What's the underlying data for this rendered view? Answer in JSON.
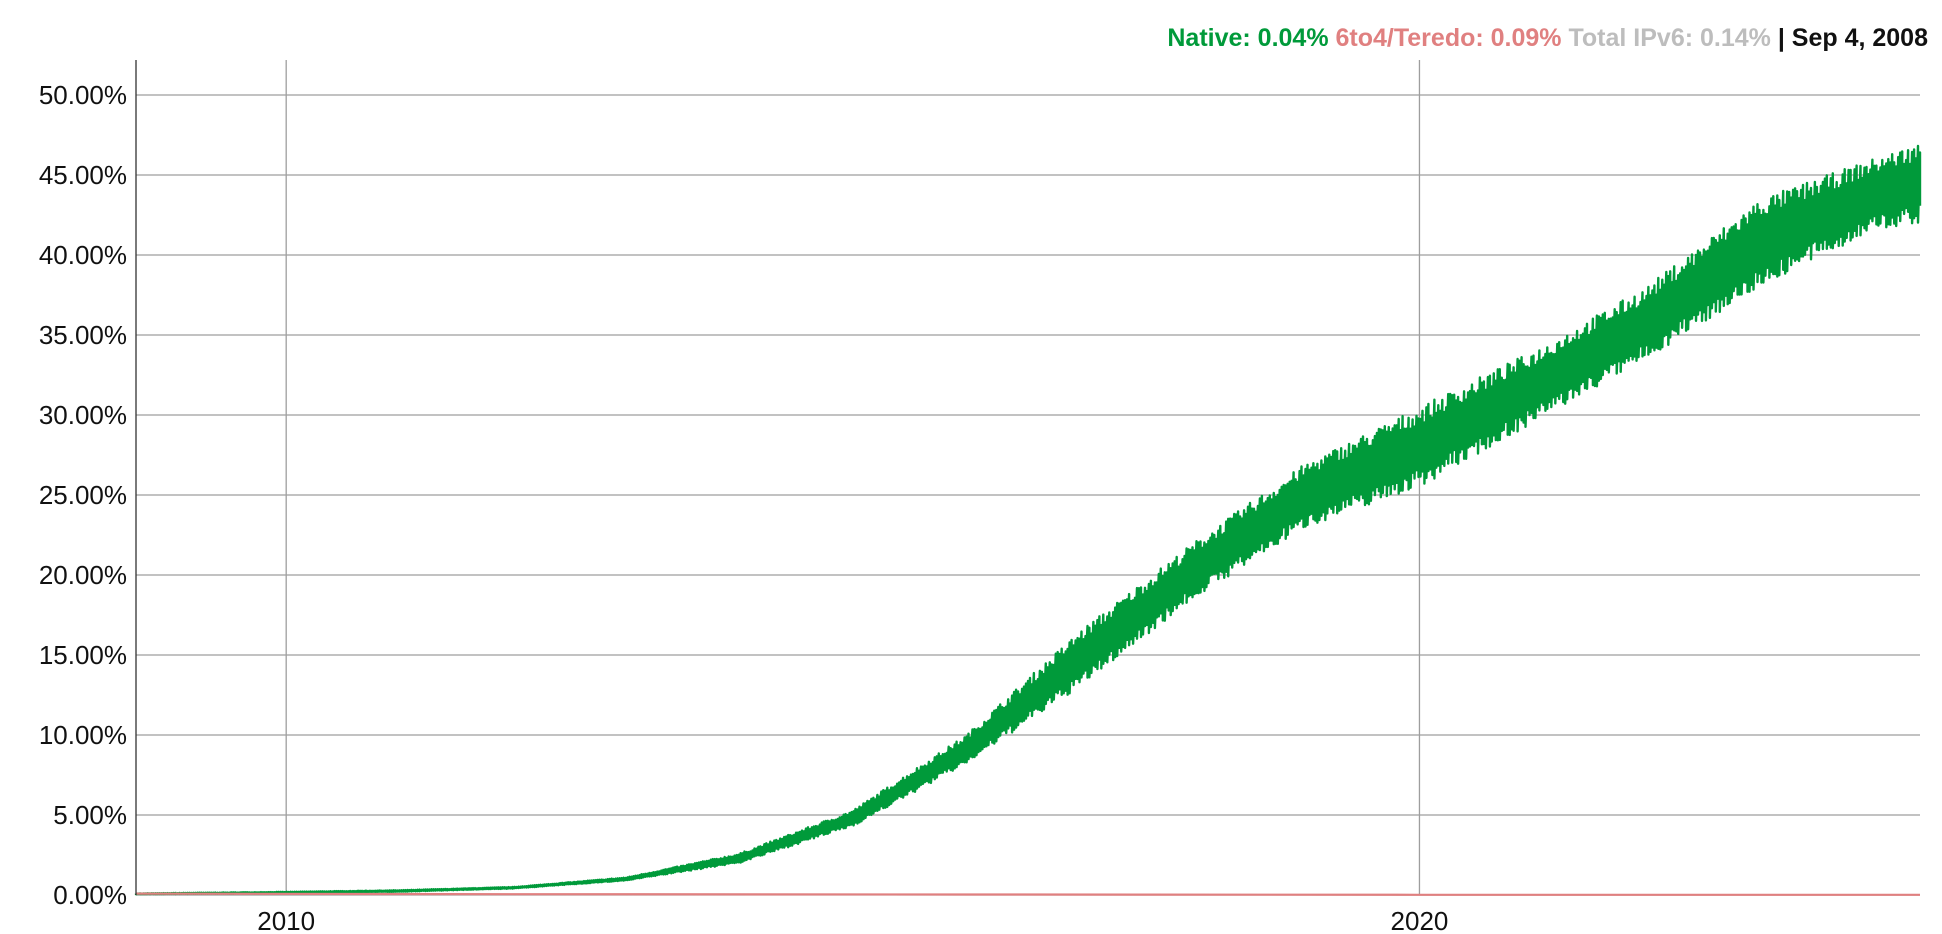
{
  "readout": {
    "native_label": "Native: 0.04%",
    "teredo_label": "6to4/Teredo: 0.09%",
    "total_label": "Total IPv6: 0.14%",
    "separator": " | ",
    "date_label": "Sep 4, 2008"
  },
  "colors": {
    "native": "#009a3a",
    "teredo": "#e08080",
    "total": "#bdbdbd",
    "date": "#111111",
    "grid": "#9e9e9e"
  },
  "chart_data": {
    "type": "area",
    "title": "",
    "xlabel": "",
    "ylabel": "",
    "xlim": [
      "2008-09-04",
      "2024-06-01"
    ],
    "ylim": [
      0,
      50
    ],
    "y_ticks": [
      0,
      5,
      10,
      15,
      20,
      25,
      30,
      35,
      40,
      45,
      50
    ],
    "y_tick_labels": [
      "0.00%",
      "5.00%",
      "10.00%",
      "15.00%",
      "20.00%",
      "25.00%",
      "30.00%",
      "35.00%",
      "40.00%",
      "45.00%",
      "50.00%"
    ],
    "x_ticks": [
      "2010-01-01",
      "2020-01-01"
    ],
    "x_tick_labels": [
      "2010",
      "2020"
    ],
    "grid": true,
    "series": [
      {
        "name": "Native",
        "x": [
          "2008-09-04",
          "2010-01-01",
          "2011-01-01",
          "2012-01-01",
          "2013-01-01",
          "2014-01-01",
          "2015-01-01",
          "2016-01-01",
          "2017-01-01",
          "2018-01-01",
          "2019-01-01",
          "2020-01-01",
          "2021-01-01",
          "2022-01-01",
          "2023-01-01",
          "2024-01-01",
          "2024-06-01"
        ],
        "y_high": [
          0.1,
          0.2,
          0.3,
          0.5,
          1.1,
          2.6,
          5.3,
          10.0,
          16.5,
          22.0,
          27.0,
          30.5,
          34.0,
          38.0,
          43.5,
          46.0,
          47.0
        ],
        "y_low": [
          0.05,
          0.1,
          0.2,
          0.4,
          0.9,
          2.0,
          4.3,
          8.2,
          13.0,
          18.5,
          23.0,
          25.5,
          29.5,
          33.5,
          38.0,
          41.5,
          42.0
        ]
      },
      {
        "name": "6to4/Teredo",
        "x": [
          "2008-09-04",
          "2012-01-01",
          "2016-01-01",
          "2020-01-01",
          "2024-06-01"
        ],
        "y": [
          0.09,
          0.05,
          0.03,
          0.01,
          0.01
        ]
      }
    ]
  }
}
